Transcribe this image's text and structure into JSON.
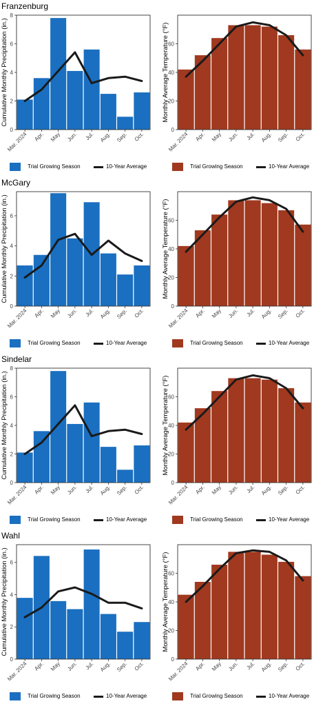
{
  "colors": {
    "precip": "#1a6fc0",
    "temp": "#a0391f",
    "line": "#1a1a1a"
  },
  "legend": {
    "precip_label": "Trial Growing Season",
    "temp_label": "Trial Growing Season",
    "avg_label": "10-Year Average"
  },
  "chart_data": [
    {
      "site": "Franzenburg",
      "precip": {
        "type": "bar",
        "categories": [
          "Mar. 2024",
          "Apr.",
          "May",
          "Jun.",
          "Jul.",
          "Aug.",
          "Sep.",
          "Oct."
        ],
        "ylabel": "Cumulative Monthly Precipitation (in.)",
        "ylim": [
          0,
          8
        ],
        "yticks": [
          0,
          2,
          4,
          6,
          8
        ],
        "series": [
          {
            "name": "Trial Growing Season",
            "values": [
              2.1,
              3.6,
              7.8,
              4.1,
              5.6,
              2.5,
              0.9,
              2.6
            ]
          },
          {
            "name": "10-Year Average",
            "values": [
              2.0,
              2.8,
              4.1,
              5.4,
              3.25,
              3.6,
              3.7,
              3.4
            ]
          }
        ]
      },
      "temp": {
        "type": "bar",
        "categories": [
          "Mar. 2024",
          "Apr.",
          "May",
          "Jun.",
          "Jul.",
          "Aug.",
          "Sep.",
          "Oct."
        ],
        "ylabel": "Monthly Average Temperature (°F)",
        "ylim": [
          0,
          80
        ],
        "yticks": [
          0,
          20,
          40,
          60
        ],
        "series": [
          {
            "name": "Trial Growing Season",
            "values": [
              42,
              52,
              64,
              73,
              73,
              72,
              66,
              56
            ]
          },
          {
            "name": "10-Year Average",
            "values": [
              37,
              48,
              60,
              72,
              75,
              73,
              66,
              52
            ]
          }
        ]
      }
    },
    {
      "site": "McGary",
      "precip": {
        "type": "bar",
        "categories": [
          "Mar. 2024",
          "Apr.",
          "May",
          "Jun.",
          "Jul.",
          "Aug.",
          "Sep.",
          "Oct."
        ],
        "ylabel": "Cumulative Monthly Precipitation (in.)",
        "ylim": [
          0,
          7.6
        ],
        "yticks": [
          0,
          2,
          4,
          6
        ],
        "series": [
          {
            "name": "Trial Growing Season",
            "values": [
              2.7,
              3.4,
              7.5,
              4.5,
              6.9,
              3.5,
              2.1,
              2.7
            ]
          },
          {
            "name": "10-Year Average",
            "values": [
              1.9,
              2.7,
              4.4,
              4.8,
              3.4,
              4.35,
              3.5,
              3.0
            ]
          }
        ]
      },
      "temp": {
        "type": "bar",
        "categories": [
          "Mar. 2024",
          "Apr.",
          "May",
          "Jun.",
          "Jul.",
          "Aug.",
          "Sep.",
          "Oct."
        ],
        "ylabel": "Monthly Average Temperature (°F)",
        "ylim": [
          0,
          80
        ],
        "yticks": [
          0,
          20,
          40,
          60
        ],
        "series": [
          {
            "name": "Trial Growing Season",
            "values": [
              42,
              53,
              64,
              74,
              74,
              72,
              67,
              57
            ]
          },
          {
            "name": "10-Year Average",
            "values": [
              38,
              50,
              62,
              73,
              76,
              74,
              68,
              52
            ]
          }
        ]
      }
    },
    {
      "site": "Sindelar",
      "precip": {
        "type": "bar",
        "categories": [
          "Mar. 2024",
          "Apr.",
          "May",
          "Jun.",
          "Jul.",
          "Aug.",
          "Sep.",
          "Oct."
        ],
        "ylabel": "Cumulative Monthly Precipitation (in.)",
        "ylim": [
          0,
          8
        ],
        "yticks": [
          0,
          2,
          4,
          6,
          8
        ],
        "series": [
          {
            "name": "Trial Growing Season",
            "values": [
              2.1,
              3.6,
              7.8,
              4.1,
              5.6,
              2.5,
              0.9,
              2.6
            ]
          },
          {
            "name": "10-Year Average",
            "values": [
              2.0,
              2.8,
              4.1,
              5.4,
              3.25,
              3.6,
              3.7,
              3.4
            ]
          }
        ]
      },
      "temp": {
        "type": "bar",
        "categories": [
          "Mar. 2024",
          "Apr.",
          "May",
          "Jun.",
          "Jul.",
          "Aug.",
          "Sep.",
          "Oct."
        ],
        "ylabel": "Monthly Average Temperature (°F)",
        "ylim": [
          0,
          80
        ],
        "yticks": [
          0,
          20,
          40,
          60
        ],
        "series": [
          {
            "name": "Trial Growing Season",
            "values": [
              42,
              52,
              64,
              73,
              73,
              72,
              66,
              56
            ]
          },
          {
            "name": "10-Year Average",
            "values": [
              37,
              48,
              60,
              72,
              75,
              73,
              66,
              52
            ]
          }
        ]
      }
    },
    {
      "site": "Wahl",
      "precip": {
        "type": "bar",
        "categories": [
          "Mar. 2024",
          "Apr.",
          "May",
          "Jun.",
          "Jul.",
          "Aug.",
          "Sep.",
          "Oct."
        ],
        "ylabel": "Cumulative Monthly Precipitation (in.)",
        "ylim": [
          0,
          7.1
        ],
        "yticks": [
          0,
          2,
          4,
          6
        ],
        "series": [
          {
            "name": "Trial Growing Season",
            "values": [
              3.8,
              6.4,
              3.6,
              3.1,
              6.8,
              2.8,
              1.7,
              2.3
            ]
          },
          {
            "name": "10-Year Average",
            "values": [
              2.6,
              3.2,
              4.2,
              4.45,
              4.05,
              3.5,
              3.5,
              3.15
            ]
          }
        ]
      },
      "temp": {
        "type": "bar",
        "categories": [
          "Mar. 2024",
          "Apr.",
          "May",
          "Jun.",
          "Jul.",
          "Aug.",
          "Sep.",
          "Oct."
        ],
        "ylabel": "Monthly Average Temperature (°F)",
        "ylim": [
          0,
          80
        ],
        "yticks": [
          0,
          20,
          40,
          60
        ],
        "series": [
          {
            "name": "Trial Growing Season",
            "values": [
              45,
              54,
              66,
              75,
              75,
              73,
              68,
              58
            ]
          },
          {
            "name": "10-Year Average",
            "values": [
              40,
              51,
              63,
              74,
              76,
              75,
              69,
              55
            ]
          }
        ]
      }
    }
  ]
}
